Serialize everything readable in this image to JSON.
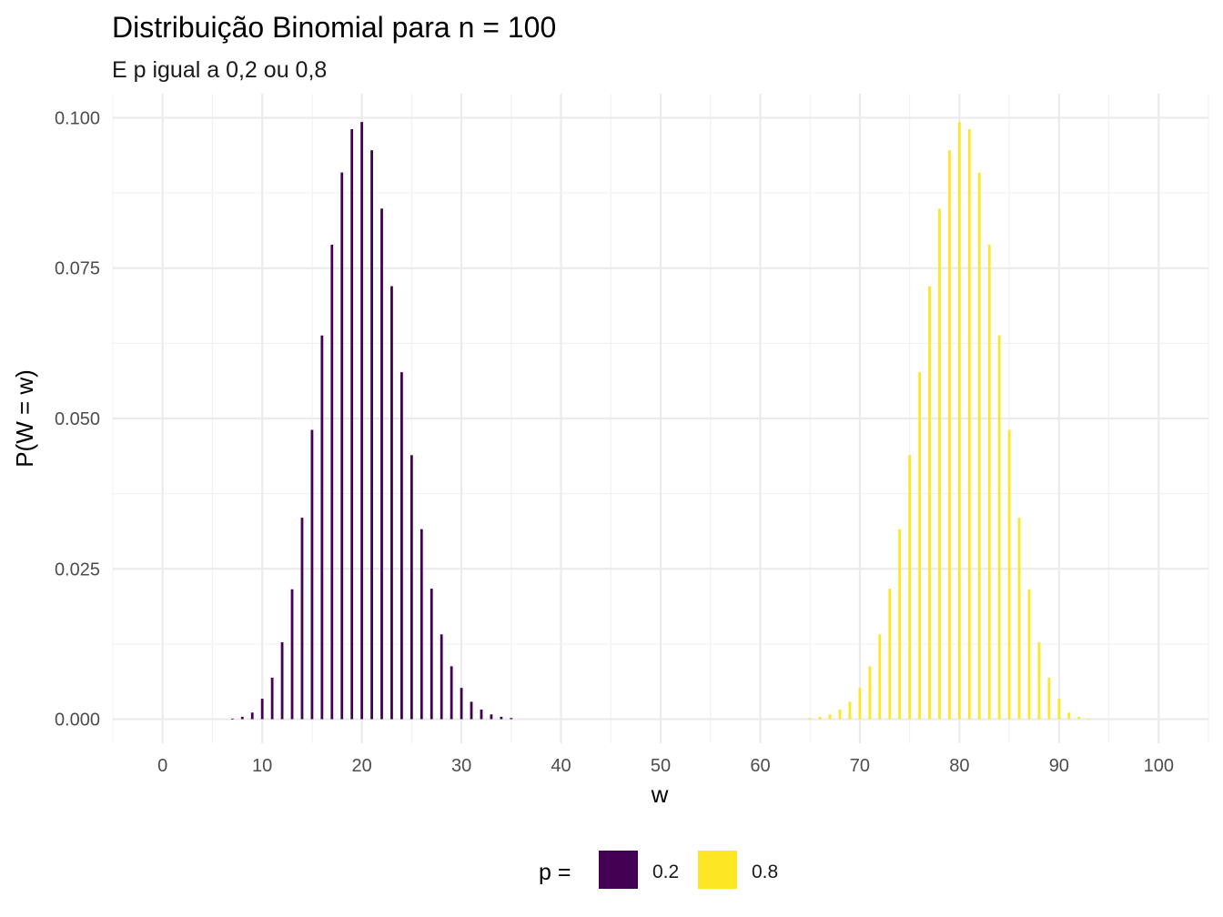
{
  "chart_data": {
    "type": "bar",
    "title": "Distribuição Binomial para n = 100",
    "subtitle": "E p igual a 0,2 ou 0,8",
    "xlabel": "w",
    "ylabel": "P(W = w)",
    "xlim": [
      -5,
      105
    ],
    "ylim": [
      -0.004,
      0.104
    ],
    "x_ticks": [
      "0",
      "10",
      "20",
      "30",
      "40",
      "50",
      "60",
      "70",
      "80",
      "90",
      "100"
    ],
    "y_ticks": [
      "0.000",
      "0.025",
      "0.050",
      "0.075",
      "0.100"
    ],
    "grid": true,
    "legend": {
      "title": "p =",
      "position": "bottom",
      "entries": [
        "0.2",
        "0.8"
      ]
    },
    "series": [
      {
        "name": "0.2",
        "color": "#440154",
        "x": [
          7,
          8,
          9,
          10,
          11,
          12,
          13,
          14,
          15,
          16,
          17,
          18,
          19,
          20,
          21,
          22,
          23,
          24,
          25,
          26,
          27,
          28,
          29,
          30,
          31,
          32,
          33,
          34,
          35
        ],
        "values": [
          0.0001,
          0.0004,
          0.0011,
          0.0034,
          0.0069,
          0.0128,
          0.0216,
          0.0335,
          0.0481,
          0.0638,
          0.0789,
          0.0909,
          0.0981,
          0.0993,
          0.0946,
          0.0849,
          0.072,
          0.0577,
          0.0439,
          0.0316,
          0.0217,
          0.0141,
          0.0088,
          0.0052,
          0.0029,
          0.0016,
          0.0008,
          0.0004,
          0.0002
        ]
      },
      {
        "name": "0.8",
        "color": "#fde725",
        "x": [
          65,
          66,
          67,
          68,
          69,
          70,
          71,
          72,
          73,
          74,
          75,
          76,
          77,
          78,
          79,
          80,
          81,
          82,
          83,
          84,
          85,
          86,
          87,
          88,
          89,
          90,
          91,
          92,
          93
        ],
        "values": [
          0.0002,
          0.0004,
          0.0008,
          0.0016,
          0.0029,
          0.0052,
          0.0088,
          0.0141,
          0.0217,
          0.0316,
          0.0439,
          0.0577,
          0.072,
          0.0849,
          0.0946,
          0.0993,
          0.0981,
          0.0909,
          0.0789,
          0.0638,
          0.0481,
          0.0335,
          0.0216,
          0.0128,
          0.0069,
          0.0034,
          0.0011,
          0.0004,
          0.0001
        ]
      }
    ]
  }
}
